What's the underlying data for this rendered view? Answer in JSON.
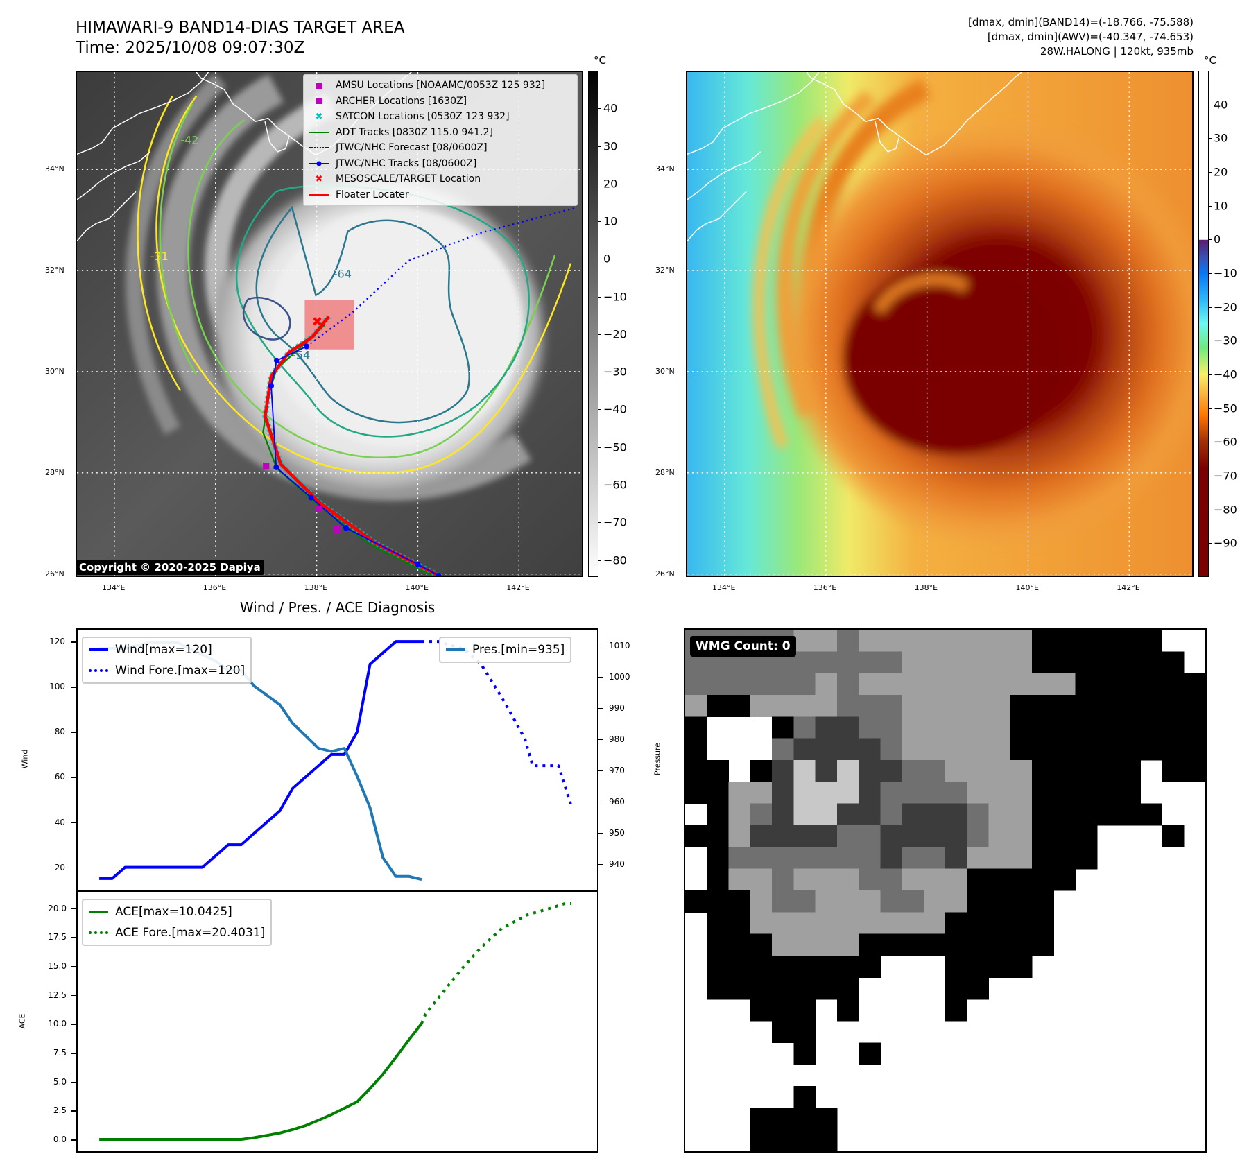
{
  "header": {
    "title": "HIMAWARI-9 BAND14-DIAS TARGET AREA",
    "time": "Time: 2025/10/08 09:07:30Z",
    "stats": [
      "[dmax, dmin](BAND14)=(-18.766, -75.588)",
      "[dmax, dmin](AWV)=(-40.347, -74.653)",
      "28W.HALONG | 120kt, 935mb"
    ]
  },
  "colors": {
    "jtwc": "#0000ff",
    "adt": "#008000",
    "floater": "#ff0000",
    "amsu": "#bf00bf",
    "satcon": "#00bfbf",
    "pressure": "#1f77b4",
    "ace": "#008000"
  },
  "map_axes": {
    "lon_ticks": [
      {
        "value": 134,
        "label": "134°E"
      },
      {
        "value": 136,
        "label": "136°E"
      },
      {
        "value": 138,
        "label": "138°E"
      },
      {
        "value": 140,
        "label": "140°E"
      },
      {
        "value": 142,
        "label": "142°E"
      }
    ],
    "lat_ticks": [
      {
        "value": 34,
        "label": "34°N"
      },
      {
        "value": 32,
        "label": "32°N"
      },
      {
        "value": 30,
        "label": "30°N"
      },
      {
        "value": 28,
        "label": "28°N"
      },
      {
        "value": 26,
        "label": "26°N"
      }
    ]
  },
  "map_left": {
    "legend": [
      "AMSU Locations [NOAAMC/0053Z 125 932]",
      "ARCHER Locations [1630Z]",
      "SATCON Locations [0530Z 123 932]",
      "ADT Tracks [0830Z 115.0 941.2]",
      "JTWC/NHC Forecast [08/0600Z]",
      "JTWC/NHC Tracks [08/0600Z]",
      "MESOSCALE/TARGET Location",
      "Floater Locater"
    ],
    "contour_labels": [
      "-64",
      "-54",
      "-42",
      "-31"
    ],
    "copyright": "Copyright © 2020-2025 Dapiya",
    "colorbar": {
      "unit": "°C",
      "range": [
        -84.5,
        50
      ],
      "ticks": [
        40,
        30,
        20,
        10,
        0,
        -10,
        -20,
        -30,
        -40,
        -50,
        -60,
        -70,
        -80
      ]
    }
  },
  "map_right": {
    "colorbar": {
      "unit": "°C",
      "range": [
        -100,
        50
      ],
      "ticks": [
        40,
        30,
        20,
        10,
        0,
        -10,
        -20,
        -30,
        -40,
        -50,
        -60,
        -70,
        -80,
        -90
      ]
    }
  },
  "tracks": {
    "jtwc": [
      [
        140.41,
        25.97
      ],
      [
        140.0,
        26.19
      ],
      [
        138.58,
        26.91
      ],
      [
        137.89,
        27.51
      ],
      [
        137.2,
        28.11
      ],
      [
        137.1,
        29.72
      ],
      [
        137.21,
        30.22
      ],
      [
        137.8,
        30.5
      ]
    ],
    "jtwc_forecast": [
      [
        137.8,
        30.5
      ],
      [
        138.71,
        31.17
      ],
      [
        139.81,
        32.19
      ],
      [
        141.23,
        32.74
      ],
      [
        143.12,
        33.24
      ]
    ],
    "adt": [
      [
        140.28,
        25.97
      ],
      [
        139.02,
        26.6
      ],
      [
        138.0,
        27.39
      ],
      [
        137.21,
        28.09
      ],
      [
        136.94,
        28.8
      ],
      [
        137.06,
        29.59
      ],
      [
        137.21,
        30.06
      ],
      [
        137.92,
        30.69
      ],
      [
        138.16,
        30.93
      ]
    ],
    "floater": [
      [
        140.41,
        25.97
      ],
      [
        139.18,
        26.6
      ],
      [
        138.08,
        27.39
      ],
      [
        137.29,
        28.17
      ],
      [
        136.98,
        29.12
      ],
      [
        137.1,
        29.91
      ],
      [
        137.45,
        30.38
      ],
      [
        137.92,
        30.69
      ],
      [
        138.24,
        31.09
      ]
    ],
    "amsu": [
      [
        137.0,
        28.14
      ],
      [
        138.05,
        27.28
      ],
      [
        138.4,
        26.88
      ]
    ],
    "target": [
      [
        138.0,
        31.0
      ]
    ]
  },
  "chart_data": [
    {
      "type": "line",
      "title": "Wind / Pres. / ACE Diagnosis",
      "ylabel": "Wind",
      "y2label": "Pressure",
      "xlim": [
        -1.67,
        38.6
      ],
      "ylim": [
        9.75,
        125.25
      ],
      "y2lim": [
        931.5,
        1015
      ],
      "yticks": [
        20,
        40,
        60,
        80,
        100,
        120
      ],
      "y2ticks": [
        940,
        950,
        960,
        970,
        980,
        990,
        1000,
        1010
      ],
      "series": [
        {
          "name": "Wind[max=120]",
          "axis": "left",
          "style": "solid",
          "color": "#0000ff",
          "x": [
            0,
            1,
            2,
            3,
            4,
            5,
            6,
            7,
            8,
            9,
            10,
            11,
            12,
            13,
            14,
            15,
            16,
            17,
            18,
            19,
            20,
            21,
            22,
            23,
            24,
            25
          ],
          "values": [
            15,
            15,
            20,
            20,
            20,
            20,
            20,
            20,
            20,
            25,
            30,
            30,
            35,
            40,
            45,
            55,
            60,
            65,
            70,
            70,
            80,
            110,
            115,
            120,
            120,
            120
          ]
        },
        {
          "name": "Wind Fore.[max=120]",
          "axis": "left",
          "style": "dotted",
          "color": "#0000ff",
          "x": [
            25,
            26.3,
            28.3,
            29.6,
            31.5,
            33,
            33.6,
            35.6,
            36.6
          ],
          "values": [
            120,
            120,
            116.6,
            110,
            92.5,
            77,
            65,
            65,
            47
          ]
        },
        {
          "name": "Pres.[min=935]",
          "axis": "right",
          "style": "solid",
          "color": "#1f77b4",
          "x": [
            0,
            1,
            2,
            3,
            4,
            5,
            6,
            7,
            8,
            9,
            10,
            11,
            12,
            13,
            14,
            15,
            16,
            17,
            18,
            19,
            20,
            21,
            22,
            23,
            24,
            25
          ],
          "values": [
            1009,
            1009,
            1009,
            1010,
            1011,
            1011,
            1011,
            1009,
            1007,
            1005,
            1002,
            1002,
            997,
            994,
            991,
            985,
            981,
            977,
            976,
            977,
            968,
            958,
            942,
            936,
            936,
            935
          ]
        }
      ]
    },
    {
      "type": "line",
      "ylabel": "ACE",
      "xlim": [
        -1.67,
        38.6
      ],
      "ylim": [
        -1.02,
        21.42
      ],
      "yticks": [
        "0.0",
        "2.5",
        "5.0",
        "7.5",
        "10.0",
        "12.5",
        "15.0",
        "17.5",
        "20.0"
      ],
      "series": [
        {
          "name": "ACE[max=10.0425]",
          "style": "solid",
          "color": "#008000",
          "x": [
            0,
            1,
            2,
            3,
            4,
            5,
            6,
            7,
            8,
            9,
            10,
            11,
            12,
            13,
            14,
            15,
            16,
            17,
            18,
            19,
            20,
            21,
            22,
            23,
            24,
            25
          ],
          "values": [
            0,
            0,
            0,
            0,
            0,
            0,
            0,
            0,
            0,
            0,
            0,
            0,
            0.15,
            0.35,
            0.55,
            0.85,
            1.2,
            1.66,
            2.15,
            2.7,
            3.26,
            4.4,
            5.65,
            7.1,
            8.6,
            10.04
          ]
        },
        {
          "name": "ACE Fore.[max=20.4031]",
          "style": "dotted",
          "color": "#008000",
          "x": [
            25,
            25.3,
            28.1,
            29.6,
            31.2,
            33.2,
            34.8,
            36.1,
            36.6
          ],
          "values": [
            10.04,
            10.85,
            14.75,
            16.6,
            18.25,
            19.44,
            19.94,
            20.4,
            20.4
          ]
        }
      ]
    }
  ],
  "wmg": {
    "label": "WMG Count: 0"
  }
}
